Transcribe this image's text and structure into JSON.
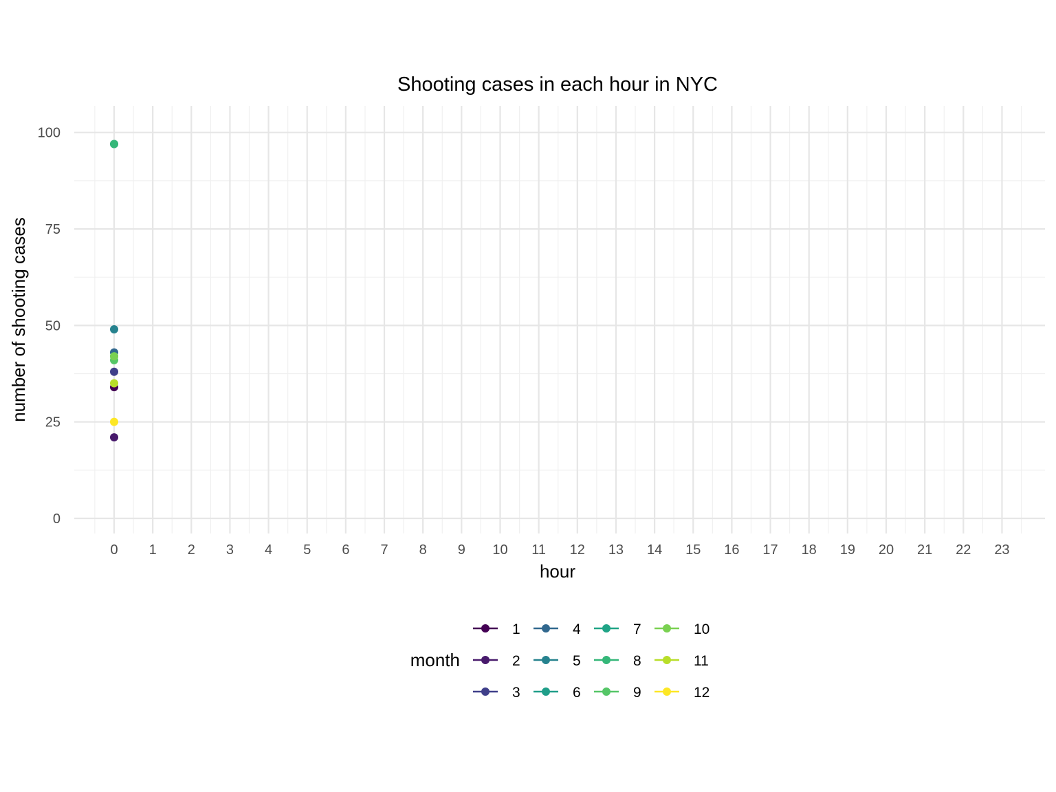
{
  "chart_data": {
    "type": "scatter",
    "title": "Shooting cases in each hour in NYC",
    "xlabel": "hour",
    "ylabel": "number of shooting cases",
    "x_ticks": [
      "0",
      "1",
      "2",
      "3",
      "4",
      "5",
      "6",
      "7",
      "8",
      "9",
      "10",
      "11",
      "12",
      "13",
      "14",
      "15",
      "16",
      "17",
      "18",
      "19",
      "20",
      "21",
      "22",
      "23"
    ],
    "xlim": [
      -1.0,
      24.2
    ],
    "y_ticks": [
      "0",
      "25",
      "50",
      "75",
      "100"
    ],
    "ylim": [
      -3.5,
      107
    ],
    "grid": true,
    "legend": {
      "title": "month",
      "position": "bottom"
    },
    "series": [
      {
        "name": "1",
        "color": "#440154",
        "points": [
          {
            "x": 0,
            "y": 34
          }
        ]
      },
      {
        "name": "2",
        "color": "#481A6C",
        "points": [
          {
            "x": 0,
            "y": 21
          }
        ]
      },
      {
        "name": "3",
        "color": "#3F3F8A",
        "points": [
          {
            "x": 0,
            "y": 38
          }
        ]
      },
      {
        "name": "4",
        "color": "#31688E",
        "points": [
          {
            "x": 0,
            "y": 43
          }
        ]
      },
      {
        "name": "5",
        "color": "#26828E",
        "points": [
          {
            "x": 0,
            "y": 49
          }
        ]
      },
      {
        "name": "6",
        "color": "#1F9E89",
        "points": [
          {
            "x": 0,
            "y": 42
          }
        ]
      },
      {
        "name": "7",
        "color": "#20A486",
        "points": [
          {
            "x": 0,
            "y": 97
          }
        ]
      },
      {
        "name": "8",
        "color": "#35B779",
        "points": [
          {
            "x": 0,
            "y": 97
          }
        ]
      },
      {
        "name": "9",
        "color": "#55C667",
        "points": [
          {
            "x": 0,
            "y": 41
          }
        ]
      },
      {
        "name": "10",
        "color": "#7AD151",
        "points": [
          {
            "x": 0,
            "y": 42
          }
        ]
      },
      {
        "name": "11",
        "color": "#B8DE29",
        "points": [
          {
            "x": 0,
            "y": 35
          }
        ]
      },
      {
        "name": "12",
        "color": "#FDE725",
        "points": [
          {
            "x": 0,
            "y": 25
          }
        ]
      }
    ]
  }
}
